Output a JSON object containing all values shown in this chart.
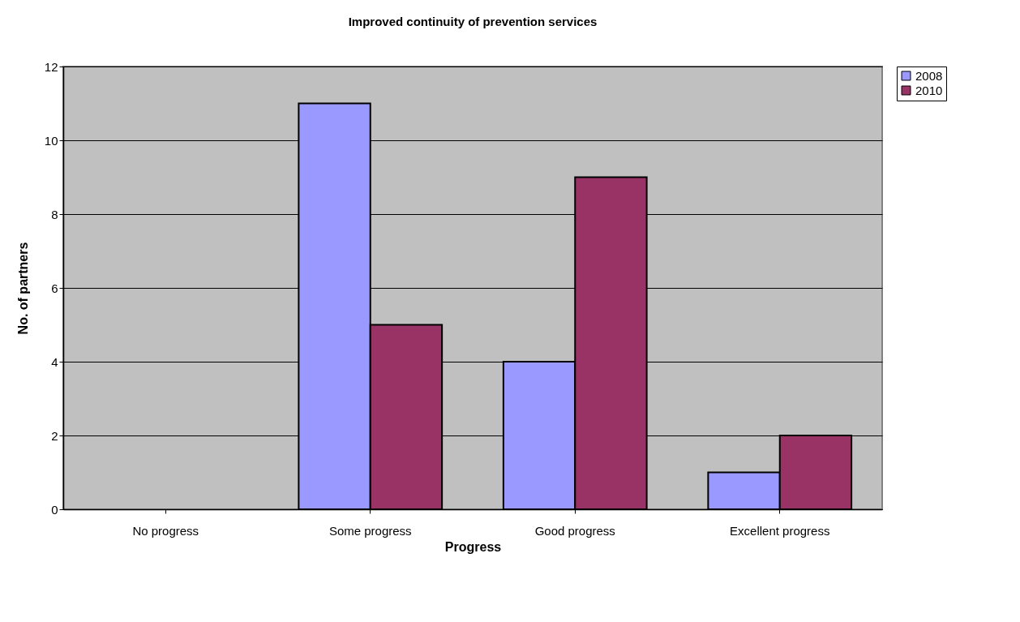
{
  "chart_data": {
    "type": "bar",
    "title": "Improved continuity of prevention services",
    "xlabel": "Progress",
    "ylabel": "No. of partners",
    "categories": [
      "No progress",
      "Some progress",
      "Good progress",
      "Excellent progress"
    ],
    "series": [
      {
        "name": "2008",
        "color": "#9999ff",
        "values": [
          null,
          11,
          4,
          1
        ]
      },
      {
        "name": "2010",
        "color": "#993366",
        "values": [
          null,
          5,
          9,
          2
        ]
      }
    ],
    "ylim": [
      0,
      12
    ],
    "yticks": [
      0,
      2,
      4,
      6,
      8,
      10,
      12
    ],
    "grid": "y",
    "legend": "right"
  }
}
